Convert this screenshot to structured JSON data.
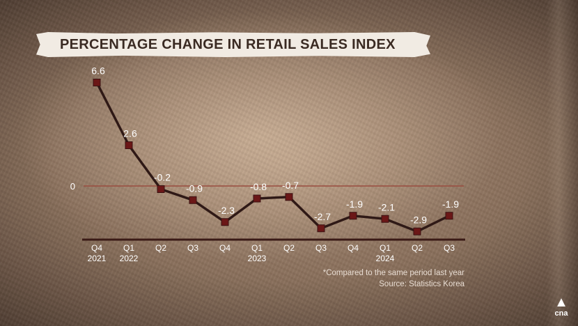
{
  "chart_data": {
    "type": "line",
    "title": "PERCENTAGE CHANGE IN RETAIL SALES INDEX",
    "categories": [
      [
        "Q4",
        "2021"
      ],
      [
        "Q1",
        "2022"
      ],
      [
        "Q2",
        ""
      ],
      [
        "Q3",
        ""
      ],
      [
        "Q4",
        ""
      ],
      [
        "Q1",
        "2023"
      ],
      [
        "Q2",
        ""
      ],
      [
        "Q3",
        ""
      ],
      [
        "Q4",
        ""
      ],
      [
        "Q1",
        "2024"
      ],
      [
        "Q2",
        ""
      ],
      [
        "Q3",
        ""
      ]
    ],
    "values": [
      6.6,
      2.6,
      -0.2,
      -0.9,
      -2.3,
      -0.8,
      -0.7,
      -2.7,
      -1.9,
      -2.1,
      -2.9,
      -1.9
    ],
    "data_labels": [
      "6.6",
      "2.6",
      "-0.2",
      "-0.9",
      "-2.3",
      "-0.8",
      "-0.7",
      "-2.7",
      "-1.9",
      "-2.1",
      "-2.9",
      "-1.9"
    ],
    "zero_label": "0",
    "ylim": [
      -4,
      7
    ],
    "grid": false,
    "colors": {
      "line": "#2f1916",
      "marker": "#6b1717",
      "zero_line": "#9a4c3f",
      "axis": "#3a1a16",
      "label": "#ffffff"
    }
  },
  "footnote": {
    "line1": "*Compared to the same period last year",
    "line2": "Source: Statistics Korea"
  },
  "logo": {
    "icon": "cna-logo-icon",
    "text": "cna"
  }
}
